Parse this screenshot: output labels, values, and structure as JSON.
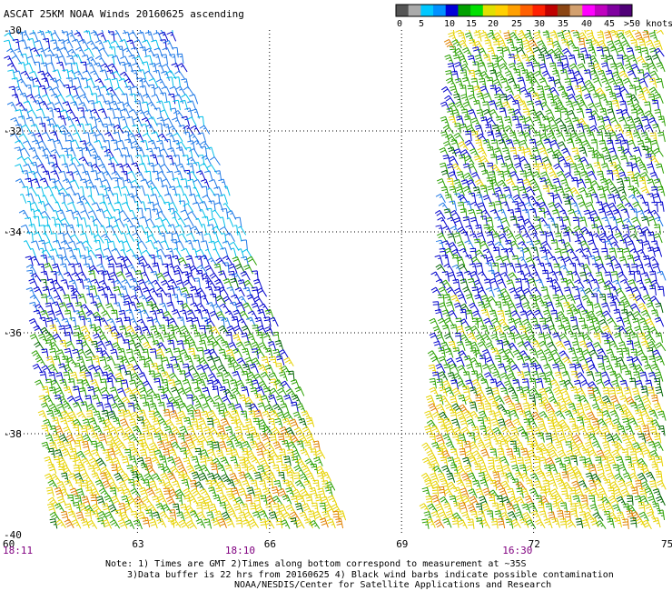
{
  "title": "ASCAT 25KM NOAA Winds 20160625 ascending",
  "legend": {
    "labels": [
      "0",
      "5",
      "10",
      "15",
      "20",
      "25",
      "30",
      "35",
      "40",
      "45",
      ">50 knots"
    ],
    "colors": [
      "#555555",
      "#aaaaaa",
      "#00c8ff",
      "#0090ff",
      "#0000d8",
      "#00a000",
      "#00e000",
      "#e0e000",
      "#ffd000",
      "#ffa000",
      "#ff6000",
      "#ff2000",
      "#c00000",
      "#8b4513",
      "#d2a06e",
      "#ff00ff",
      "#c000c0",
      "#8000a0",
      "#500078"
    ]
  },
  "notes": {
    "line1": "Note: 1) Times are GMT 2)Times along bottom correspond to measurement at ~35S",
    "line2": "3)Data buffer is 22 hrs from 20160625 4) Black wind barbs indicate possible contamination",
    "line3": "NOAA/NESDIS/Center for Satellite Applications and Research"
  },
  "chart_data": {
    "type": "wind-barb map",
    "title": "ASCAT 25KM NOAA Winds 20160625 ascending",
    "x_axis": {
      "label": "",
      "range": [
        60,
        75
      ],
      "ticks": [
        "60",
        "63",
        "66",
        "69",
        "72",
        "75"
      ],
      "tick_values": [
        60,
        63,
        66,
        69,
        72,
        75
      ]
    },
    "y_axis": {
      "label": "",
      "range": [
        -40,
        -30
      ],
      "ticks": [
        "-30",
        "-32",
        "-34",
        "-36",
        "-38",
        "-40"
      ],
      "tick_values": [
        -30,
        -32,
        -34,
        -36,
        -38,
        -40
      ]
    },
    "grid": "dotted",
    "time_labels": [
      {
        "text": "18:11",
        "lon": 60
      },
      {
        "text": "18:10",
        "lon": 65.3
      },
      {
        "text": "16:30",
        "lon": 71.6
      }
    ],
    "swaths": [
      {
        "name": "18:10",
        "edges": {
          "west_lon_top": 60.1,
          "east_lon_top": 63.8,
          "west_lon_bottom": 61.2,
          "east_lon_bottom": 67.9
        },
        "speed_bands_knots": [
          {
            "lat_range": [
              -30,
              -33.2
            ],
            "speed": 12
          },
          {
            "lat_range": [
              -33.2,
              -34.6
            ],
            "speed": 9
          },
          {
            "lat_range": [
              -34.6,
              -35.9
            ],
            "speed": 17
          },
          {
            "lat_range": [
              -35.9,
              -37.7
            ],
            "speed": 22
          },
          {
            "lat_range": [
              -37.7,
              -40
            ],
            "speed": 27
          }
        ],
        "predominant_direction": "westerly"
      },
      {
        "name": "16:30",
        "edges": {
          "west_lon_top": 70.2,
          "east_lon_top": 75,
          "west_lon_bottom": 69.6,
          "east_lon_bottom": 75
        },
        "speed_bands_knots": [
          {
            "lat_range": [
              -30,
              -30.5
            ],
            "speed": 27
          },
          {
            "lat_range": [
              -30.5,
              -33.3
            ],
            "speed": 22
          },
          {
            "lat_range": [
              -33.3,
              -35.3
            ],
            "speed": 18
          },
          {
            "lat_range": [
              -35.3,
              -37.2
            ],
            "speed": 22
          },
          {
            "lat_range": [
              -37.2,
              -40
            ],
            "speed": 27
          }
        ],
        "predominant_direction": "west-northwesterly"
      }
    ]
  }
}
